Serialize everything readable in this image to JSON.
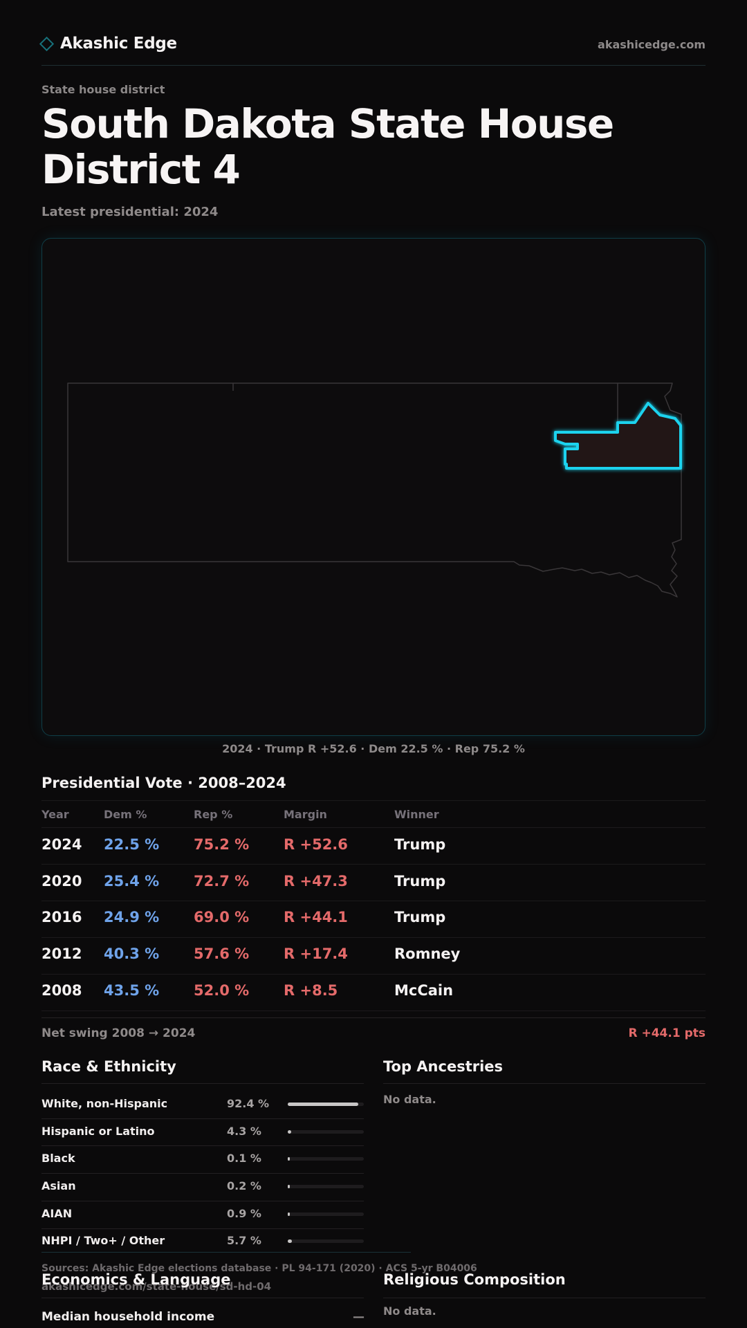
{
  "header": {
    "brand": "Akashic Edge",
    "site": "akashicedge.com"
  },
  "page": {
    "kicker": "State house district",
    "title": "South Dakota State House District 4",
    "subtitle": "Latest presidential: 2024"
  },
  "map": {
    "caption": "2024 · Trump R +52.6 · Dem 22.5 % · Rep 75.2 %",
    "highlight_color": "#1fd3ee",
    "state_outline_color": "#3a3739"
  },
  "vote_table": {
    "title": "Presidential Vote · 2008–2024",
    "headers": [
      "Year",
      "Dem %",
      "Rep %",
      "Margin",
      "Winner"
    ],
    "rows": [
      {
        "year": "2024",
        "dem": "22.5 %",
        "rep": "75.2 %",
        "margin": "R +52.6",
        "winner": "Trump"
      },
      {
        "year": "2020",
        "dem": "25.4 %",
        "rep": "72.7 %",
        "margin": "R +47.3",
        "winner": "Trump"
      },
      {
        "year": "2016",
        "dem": "24.9 %",
        "rep": "69.0 %",
        "margin": "R +44.1",
        "winner": "Trump"
      },
      {
        "year": "2012",
        "dem": "40.3 %",
        "rep": "57.6 %",
        "margin": "R +17.4",
        "winner": "Romney"
      },
      {
        "year": "2008",
        "dem": "43.5 %",
        "rep": "52.0 %",
        "margin": "R +8.5",
        "winner": "McCain"
      }
    ],
    "swing_label": "Net swing 2008 → 2024",
    "swing_value": "R +44.1 pts"
  },
  "race": {
    "title": "Race & Ethnicity",
    "rows": [
      {
        "label": "White, non-Hispanic",
        "pct": "92.4 %",
        "value": 92.4
      },
      {
        "label": "Hispanic or Latino",
        "pct": "4.3 %",
        "value": 4.3
      },
      {
        "label": "Black",
        "pct": "0.1 %",
        "value": 0.1
      },
      {
        "label": "Asian",
        "pct": "0.2 %",
        "value": 0.2
      },
      {
        "label": "AIAN",
        "pct": "0.9 %",
        "value": 0.9
      },
      {
        "label": "NHPI / Two+ / Other",
        "pct": "5.7 %",
        "value": 5.7
      }
    ]
  },
  "ancestries": {
    "title": "Top Ancestries",
    "empty": "No data."
  },
  "footer": {
    "sources": "Sources: Akashic Edge elections database · PL 94-171 (2020) · ACS 5-yr B04006",
    "url": "akashicedge.com/state-house/sd-hd-04"
  },
  "economics": {
    "title": "Economics & Language",
    "rows": [
      {
        "label": "Median household income",
        "value": "—"
      }
    ]
  },
  "religion": {
    "title": "Religious Composition",
    "empty": "No data."
  }
}
